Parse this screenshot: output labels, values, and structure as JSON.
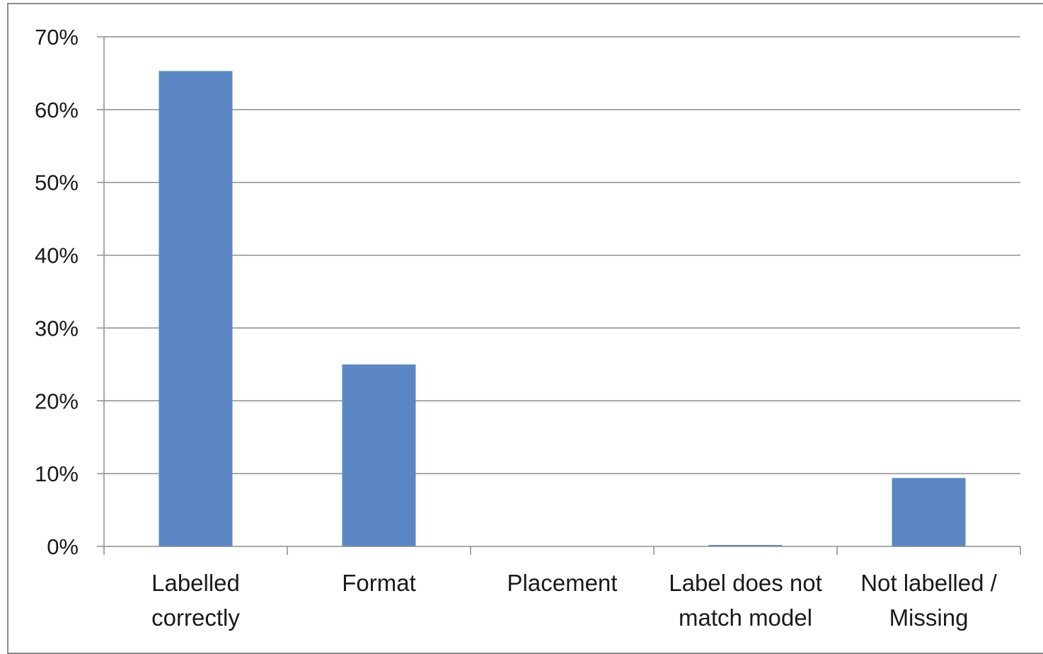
{
  "chart_data": {
    "type": "bar",
    "categories": [
      [
        "Labelled",
        "correctly"
      ],
      [
        "Format"
      ],
      [
        "Placement"
      ],
      [
        "Label does not",
        "match model"
      ],
      [
        "Not labelled /",
        "Missing"
      ]
    ],
    "values": [
      65.3,
      25.0,
      0.0,
      0.2,
      9.4
    ],
    "ylim": [
      0,
      70
    ],
    "yticks": [
      0,
      10,
      20,
      30,
      40,
      50,
      60,
      70
    ],
    "ytick_labels": [
      "0%",
      "10%",
      "20%",
      "30%",
      "40%",
      "50%",
      "60%",
      "70%"
    ],
    "grid": true,
    "legend": "none",
    "title": "",
    "xlabel": "",
    "ylabel": "",
    "colors": {
      "bar": "#5b88c4",
      "grid": "#8c8c8c",
      "axis": "#8c8c8c"
    }
  }
}
